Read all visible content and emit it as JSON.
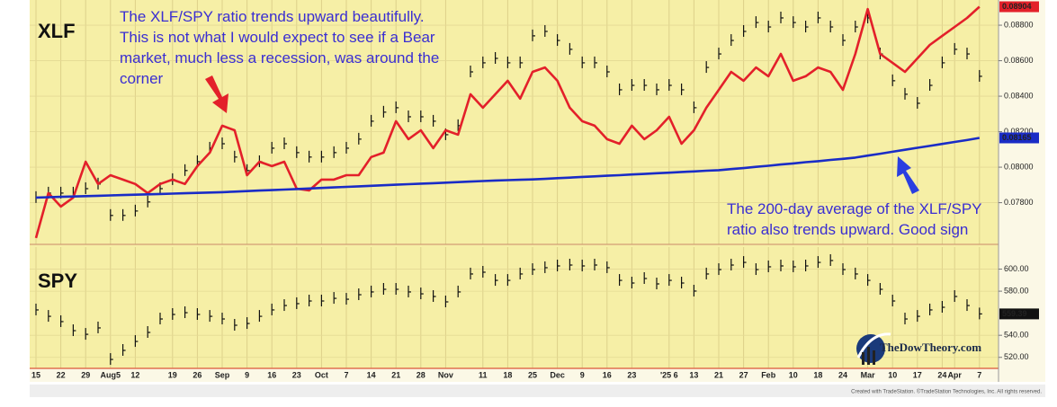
{
  "chart_data": [
    {
      "type": "line",
      "title": "XLF",
      "ylim": [
        0.07565,
        0.08942
      ],
      "yticks": [
        {
          "value": 0.088,
          "label": "0.08800"
        },
        {
          "value": 0.086,
          "label": "0.08600"
        },
        {
          "value": 0.084,
          "label": "0.08400"
        },
        {
          "value": 0.082,
          "label": "0.08200"
        },
        {
          "value": 0.08,
          "label": "0.08000"
        },
        {
          "value": 0.078,
          "label": "0.07800"
        }
      ],
      "grid": true,
      "annotations": [
        [
          "The XLF/SPY ratio trends upward beautifully.",
          "This is not what I would expect to see if a Bear",
          "market, much less a recession, was around the",
          "corner"
        ],
        [
          "The 200-day average of the XLF/SPY",
          "ratio also trends upward. Good sign"
        ]
      ],
      "series": [
        {
          "style": "bars",
          "color": "#111111",
          "values": [
            0.07829,
            0.07854,
            0.07854,
            0.07854,
            0.07879,
            0.07905,
            0.07728,
            0.07728,
            0.07753,
            0.07804,
            0.07879,
            0.0793,
            0.07981,
            0.08031,
            0.08107,
            0.08132,
            0.08057,
            0.07981,
            0.08031,
            0.08107,
            0.08132,
            0.08082,
            0.08057,
            0.08057,
            0.08082,
            0.08107,
            0.08158,
            0.08259,
            0.0831,
            0.08335,
            0.08284,
            0.08284,
            0.08259,
            0.08183,
            0.08234,
            0.08537,
            0.08588,
            0.08613,
            0.08588,
            0.08588,
            0.0874,
            0.08765,
            0.08714,
            0.08664,
            0.08588,
            0.08588,
            0.08537,
            0.08436,
            0.08461,
            0.08461,
            0.08436,
            0.08461,
            0.08436,
            0.08335,
            0.08562,
            0.08638,
            0.08714,
            0.08765,
            0.08815,
            0.0879,
            0.08841,
            0.08815,
            0.0879,
            0.08841,
            0.0879,
            0.08714,
            0.0879,
            0.08841,
            0.08638,
            0.08487,
            0.08411,
            0.0836,
            0.08461,
            0.08588,
            0.08664,
            0.08638,
            0.08512
          ]
        },
        {
          "style": "line",
          "color": "#e3202a",
          "highlight_last": true,
          "values": [
            0.07601,
            0.07854,
            0.07778,
            0.07829,
            0.08031,
            0.07905,
            0.07955,
            0.0793,
            0.07905,
            0.07854,
            0.07905,
            0.0793,
            0.07905,
            0.08006,
            0.08082,
            0.08234,
            0.08208,
            0.07955,
            0.08031,
            0.08006,
            0.08031,
            0.07879,
            0.07869,
            0.0793,
            0.0793,
            0.07955,
            0.07955,
            0.08057,
            0.08082,
            0.08259,
            0.08158,
            0.08208,
            0.08107,
            0.08208,
            0.08183,
            0.08411,
            0.08335,
            0.08411,
            0.08487,
            0.08386,
            0.08537,
            0.08562,
            0.08487,
            0.08335,
            0.08259,
            0.08234,
            0.08158,
            0.08132,
            0.08234,
            0.08158,
            0.08208,
            0.08284,
            0.08132,
            0.08208,
            0.08335,
            0.08436,
            0.08537,
            0.08487,
            0.08562,
            0.08512,
            0.08638,
            0.08487,
            0.08512,
            0.08562,
            0.08537,
            0.08436,
            0.08638,
            0.08891,
            0.08638,
            0.08588,
            0.08537,
            0.08613,
            0.08689,
            0.0874,
            0.0879,
            0.08841,
            0.08904
          ]
        },
        {
          "style": "line",
          "color": "#1a2cc6",
          "highlight_last": true,
          "values": [
            0.07829,
            0.07831,
            0.07833,
            0.07835,
            0.07837,
            0.07839,
            0.07841,
            0.07843,
            0.07845,
            0.07847,
            0.07849,
            0.07851,
            0.07853,
            0.07855,
            0.07857,
            0.07859,
            0.07862,
            0.07865,
            0.07868,
            0.07871,
            0.07874,
            0.07877,
            0.0788,
            0.07883,
            0.07886,
            0.07889,
            0.07892,
            0.07895,
            0.07898,
            0.07901,
            0.07904,
            0.07907,
            0.0791,
            0.07913,
            0.07916,
            0.07919,
            0.07922,
            0.07925,
            0.07927,
            0.07929,
            0.07931,
            0.07934,
            0.07938,
            0.07941,
            0.07945,
            0.07948,
            0.07952,
            0.07955,
            0.07959,
            0.07962,
            0.07966,
            0.07969,
            0.07973,
            0.07976,
            0.0798,
            0.07983,
            0.07989,
            0.07995,
            0.08002,
            0.08008,
            0.08015,
            0.08021,
            0.08028,
            0.08034,
            0.08041,
            0.08047,
            0.08054,
            0.08065,
            0.08076,
            0.08087,
            0.08098,
            0.08109,
            0.0812,
            0.08131,
            0.08142,
            0.08153,
            0.08165
          ]
        }
      ]
    },
    {
      "type": "line",
      "title": "SPY",
      "ylim": [
        510,
        620
      ],
      "yticks": [
        {
          "value": 600,
          "label": "600.00"
        },
        {
          "value": 580,
          "label": "580.00"
        },
        {
          "value": 540,
          "label": "540.00"
        },
        {
          "value": 520,
          "label": "520.00"
        }
      ],
      "grid": true,
      "categories": [
        "15",
        null,
        "22",
        null,
        "29",
        null,
        "Aug5",
        null,
        "12",
        null,
        null,
        "19",
        null,
        "26",
        null,
        "Sep",
        null,
        "9",
        null,
        "16",
        null,
        "23",
        null,
        "Oct",
        null,
        "7",
        null,
        "14",
        null,
        "21",
        null,
        "28",
        null,
        "Nov",
        null,
        null,
        "11",
        null,
        "18",
        null,
        "25",
        null,
        "Dec",
        null,
        "9",
        null,
        "16",
        null,
        "23",
        null,
        null,
        "'25 6",
        null,
        "13",
        null,
        "21",
        null,
        "27",
        null,
        "Feb",
        null,
        "10",
        null,
        "18",
        null,
        "24",
        null,
        "Mar",
        null,
        "10",
        null,
        "17",
        null,
        "24",
        "Apr",
        null,
        "7"
      ],
      "series": [
        {
          "style": "bars",
          "color": "#111111",
          "highlight_last": true,
          "values": [
            563.0,
            557.2,
            552.4,
            544.2,
            540.9,
            546.7,
            518.1,
            526.3,
            534.4,
            542.6,
            554.8,
            558.9,
            560.5,
            558.9,
            557.2,
            554.8,
            549.1,
            550.7,
            557.2,
            563.0,
            567.0,
            568.7,
            571.1,
            571.1,
            573.5,
            572.7,
            576.8,
            579.3,
            581.7,
            581.7,
            579.3,
            577.6,
            575.2,
            570.3,
            579.3,
            595.6,
            597.2,
            589.8,
            589.8,
            595.6,
            599.6,
            601.3,
            602.9,
            603.7,
            602.9,
            603.7,
            601.3,
            589.8,
            587.4,
            591.5,
            586.6,
            589.8,
            587.4,
            580.1,
            595.6,
            599.6,
            603.7,
            606.1,
            599.6,
            602.1,
            602.9,
            602.1,
            602.9,
            606.1,
            607.8,
            599.6,
            595.6,
            589.8,
            581.7,
            571.1,
            554.8,
            557.2,
            563.0,
            565.4,
            575.2,
            567.0,
            559.39
          ]
        }
      ]
    }
  ],
  "logo": "TheDowTheory.com",
  "footer": "Created with TradeStation. ©TradeStation Technologies, Inc. All rights reserved."
}
